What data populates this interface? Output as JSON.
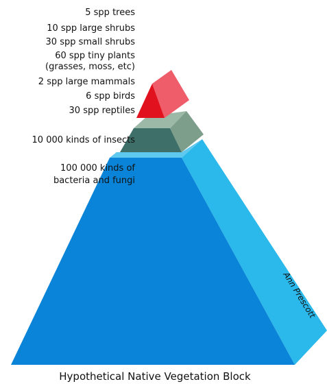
{
  "labels": [
    "5 spp trees",
    "10 spp large shrubs",
    "30 spp small shrubs",
    "60 spp tiny plants",
    "(grasses, moss, etc)",
    "2 spp large mammals",
    "6 spp birds",
    "30 spp reptiles",
    "10 000 kinds of insects",
    "100 000 kinds of",
    "bacteria and fungi"
  ],
  "signature": "Ann Prescott",
  "caption": "Hypothetical Native Vegetation Block"
}
